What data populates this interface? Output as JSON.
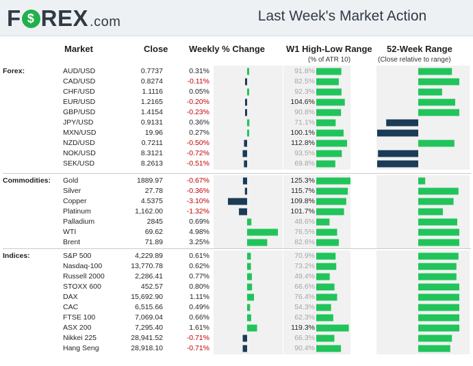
{
  "header": {
    "logo_left": "F",
    "logo_right": "REX",
    "logo_suffix": ".com",
    "title": "Last Week's Market Action"
  },
  "columns": {
    "market": "Market",
    "close": "Close",
    "weekly": "Weekly % Change",
    "w1": "W1 High-Low Range",
    "w1_sub": "(% of ATR 10)",
    "w52": "52-Week Range",
    "w52_sub": "(Close relative to range)"
  },
  "colors": {
    "positive": "#21c45a",
    "negative": "#1b3b56",
    "range_bar": "#21c45a",
    "neg_text": "#c00000"
  },
  "chart_data": {
    "type": "table",
    "title": "Last Week's Market Action",
    "groups": [
      {
        "label": "Forex:",
        "rows": [
          {
            "name": "AUD/USD",
            "close": "0.7737",
            "pct": 0.31,
            "pct_label": "0.31%",
            "atr": 91.8,
            "atr_label": "91.8%",
            "w52": 0.82
          },
          {
            "name": "CAD/USD",
            "close": "0.8274",
            "pct": -0.11,
            "pct_label": "-0.11%",
            "atr": 82.5,
            "atr_label": "82.5%",
            "w52": 1.0
          },
          {
            "name": "CHF/USD",
            "close": "1.1116",
            "pct": 0.05,
            "pct_label": "0.05%",
            "atr": 92.3,
            "atr_label": "92.3%",
            "w52": 0.58
          },
          {
            "name": "EUR/USD",
            "close": "1.2165",
            "pct": -0.2,
            "pct_label": "-0.20%",
            "atr": 104.6,
            "atr_label": "104.6%",
            "w52": 0.9
          },
          {
            "name": "GBP/USD",
            "close": "1.4154",
            "pct": -0.23,
            "pct_label": "-0.23%",
            "atr": 90.8,
            "atr_label": "90.8%",
            "w52": 1.0
          },
          {
            "name": "JPY/USD",
            "close": "0.9131",
            "pct": 0.36,
            "pct_label": "0.36%",
            "atr": 71.1,
            "atr_label": "71.1%",
            "w52": -0.78
          },
          {
            "name": "MXN/USD",
            "close": "19.96",
            "pct": 0.27,
            "pct_label": "0.27%",
            "atr": 100.1,
            "atr_label": "100.1%",
            "w52": -1.0
          },
          {
            "name": "NZD/USD",
            "close": "0.7211",
            "pct": -0.5,
            "pct_label": "-0.50%",
            "atr": 112.8,
            "atr_label": "112.8%",
            "w52": 0.88
          },
          {
            "name": "NOK/USD",
            "close": "8.3121",
            "pct": -0.72,
            "pct_label": "-0.72%",
            "atr": 93.5,
            "atr_label": "93.5%",
            "w52": -0.98
          },
          {
            "name": "SEK/USD",
            "close": "8.2613",
            "pct": -0.51,
            "pct_label": "-0.51%",
            "atr": 69.8,
            "atr_label": "69.8%",
            "w52": -1.0
          }
        ]
      },
      {
        "label": "Commodities:",
        "rows": [
          {
            "name": "Gold",
            "close": "1889.97",
            "pct": -0.67,
            "pct_label": "-0.67%",
            "atr": 125.3,
            "atr_label": "125.3%",
            "w52": 0.17
          },
          {
            "name": "Silver",
            "close": "27.78",
            "pct": -0.36,
            "pct_label": "-0.36%",
            "atr": 115.7,
            "atr_label": "115.7%",
            "w52": 0.98
          },
          {
            "name": "Copper",
            "close": "4.5375",
            "pct": -3.1,
            "pct_label": "-3.10%",
            "atr": 109.8,
            "atr_label": "109.8%",
            "w52": 0.86
          },
          {
            "name": "Platinum",
            "close": "1,162.00",
            "pct": -1.32,
            "pct_label": "-1.32%",
            "atr": 101.7,
            "atr_label": "101.7%",
            "w52": 0.6
          },
          {
            "name": "Palladium",
            "close": "2845",
            "pct": 0.69,
            "pct_label": "0.69%",
            "atr": 48.6,
            "atr_label": "48.6%",
            "w52": 0.95
          },
          {
            "name": "WTI",
            "close": "69.62",
            "pct": 4.98,
            "pct_label": "4.98%",
            "atr": 76.5,
            "atr_label": "76.5%",
            "w52": 1.0
          },
          {
            "name": "Brent",
            "close": "71.89",
            "pct": 3.25,
            "pct_label": "3.25%",
            "atr": 82.6,
            "atr_label": "82.6%",
            "w52": 1.0
          }
        ]
      },
      {
        "label": "Indices:",
        "rows": [
          {
            "name": "S&P 500",
            "close": "4,229.89",
            "pct": 0.61,
            "pct_label": "0.61%",
            "atr": 70.9,
            "atr_label": "70.9%",
            "w52": 0.98
          },
          {
            "name": "Nasdaq-100",
            "close": "13,770.78",
            "pct": 0.62,
            "pct_label": "0.62%",
            "atr": 73.2,
            "atr_label": "73.2%",
            "w52": 0.93
          },
          {
            "name": "Russell 2000",
            "close": "2,286.41",
            "pct": 0.77,
            "pct_label": "0.77%",
            "atr": 49.4,
            "atr_label": "49.4%",
            "w52": 0.93
          },
          {
            "name": "STOXX 600",
            "close": "452.57",
            "pct": 0.8,
            "pct_label": "0.80%",
            "atr": 66.6,
            "atr_label": "66.6%",
            "w52": 1.0
          },
          {
            "name": "DAX",
            "close": "15,692.90",
            "pct": 1.11,
            "pct_label": "1.11%",
            "atr": 76.4,
            "atr_label": "76.4%",
            "w52": 1.0
          },
          {
            "name": "CAC",
            "close": "6,515.66",
            "pct": 0.49,
            "pct_label": "0.49%",
            "atr": 54.3,
            "atr_label": "54.3%",
            "w52": 1.0
          },
          {
            "name": "FTSE 100",
            "close": "7,069.04",
            "pct": 0.66,
            "pct_label": "0.66%",
            "atr": 62.3,
            "atr_label": "62.3%",
            "w52": 1.0
          },
          {
            "name": "ASX 200",
            "close": "7,295.40",
            "pct": 1.61,
            "pct_label": "1.61%",
            "atr": 119.3,
            "atr_label": "119.3%",
            "w52": 1.0
          },
          {
            "name": "Nikkei 225",
            "close": "28,941.52",
            "pct": -0.71,
            "pct_label": "-0.71%",
            "atr": 66.3,
            "atr_label": "66.3%",
            "w52": 0.82
          },
          {
            "name": "Hang Seng",
            "close": "28,918.10",
            "pct": -0.71,
            "pct_label": "-0.71%",
            "atr": 90.4,
            "atr_label": "90.4%",
            "w52": 0.78
          }
        ]
      }
    ]
  }
}
